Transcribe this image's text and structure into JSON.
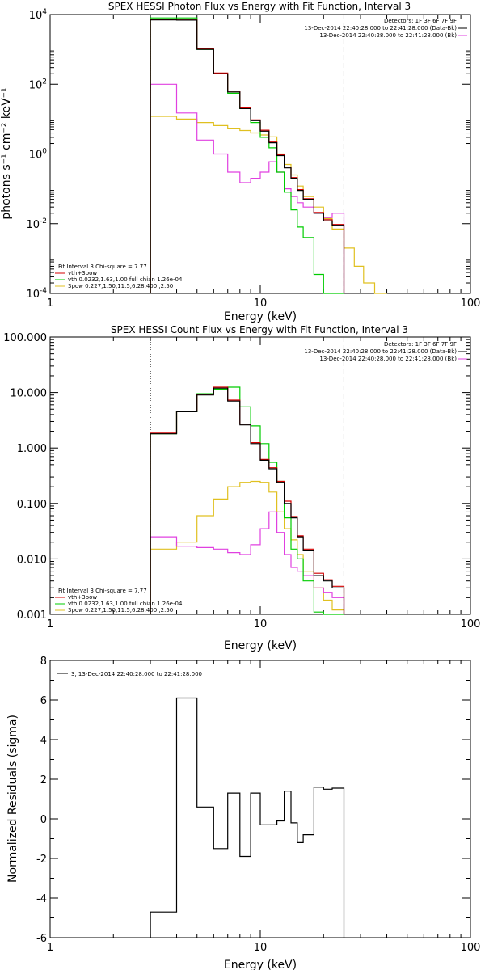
{
  "chart_data": [
    {
      "type": "line",
      "step": true,
      "title": "SPEX HESSI Photon Flux vs Energy with Fit Function, Interval 3",
      "xlabel": "Energy (keV)",
      "ylabel": "photons s⁻¹ cm⁻² keV⁻¹",
      "xscale": "log",
      "yscale": "log",
      "xlim": [
        1,
        100
      ],
      "ylim": [
        0.0001,
        10000
      ],
      "xticks": [
        "1",
        "10",
        "100"
      ],
      "yticks": [
        {
          "base": "10",
          "exp": "-4"
        },
        {
          "base": "10",
          "exp": "-2"
        },
        {
          "base": "10",
          "exp": "0"
        },
        {
          "base": "10",
          "exp": "2"
        },
        {
          "base": "10",
          "exp": "4"
        }
      ],
      "legend_top": [
        "Detectors: 1F 3F 6F 7F 9F",
        "13-Dec-2014 22:40:28.000 to 22:41:28.000 (Data-Bk)",
        "13-Dec-2014 22:40:28.000 to 22:41:28.000 (Bk)"
      ],
      "legend_bottom": [
        "Fit Interval 3   Chi-square = 7.77",
        "vth+3pow",
        "vth 0.0232,1.63,1.00  full chian 1.26e-04",
        "3pow 0.227,1.50,11.5,6.28,400.,2.50"
      ],
      "x_dashed_line": 25,
      "x_dotted_line": 3,
      "edges": [
        3,
        4,
        5,
        6,
        7,
        8,
        9,
        10,
        11,
        12,
        13,
        14,
        15,
        16,
        18,
        20,
        22,
        25,
        28,
        31,
        35,
        40
      ],
      "series": [
        {
          "color": "#000000",
          "values": [
            7000,
            6900,
            1000,
            200,
            60,
            20,
            9,
            4.5,
            2.1,
            0.9,
            0.4,
            0.2,
            0.09,
            0.05,
            0.02,
            0.012,
            0.009
          ]
        },
        {
          "color": "#d40000",
          "values": [
            7100,
            7000,
            1050,
            210,
            64,
            22,
            9.5,
            4.8,
            2.2,
            0.95,
            0.42,
            0.21,
            0.095,
            0.052,
            0.021,
            0.013,
            0.0095
          ]
        },
        {
          "color": "#00cc00",
          "values": [
            8000,
            8000,
            1000,
            200,
            55,
            20,
            8,
            3,
            1.5,
            0.3,
            0.08,
            0.025,
            0.008,
            0.004,
            0.00035,
            0.0001,
            5e-05
          ]
        },
        {
          "color": "#e040e0",
          "values": [
            100,
            15,
            2.5,
            1.0,
            0.3,
            0.15,
            0.2,
            0.3,
            0.6,
            0.3,
            0.1,
            0.06,
            0.04,
            0.03,
            0.02,
            0.015,
            0.02
          ]
        },
        {
          "color": "#e0c020",
          "values": [
            12,
            10,
            8,
            6.5,
            5.5,
            4.7,
            4,
            3.5,
            3.1,
            1.0,
            0.5,
            0.25,
            0.12,
            0.06,
            0.03,
            0.014,
            0.007,
            0.002,
            0.0006,
            0.0002,
            6e-05
          ]
        }
      ]
    },
    {
      "type": "line",
      "step": true,
      "title": "SPEX HESSI Count Flux vs Energy with Fit Function, Interval 3",
      "xlabel": "Energy (keV)",
      "xscale": "log",
      "yscale": "log",
      "xlim": [
        1,
        100
      ],
      "ylim": [
        0.001,
        100
      ],
      "xticks": [
        "1",
        "10",
        "100"
      ],
      "yticks": [
        "0.001",
        "0.010",
        "0.100",
        "1.000",
        "10.000",
        "100.000"
      ],
      "legend_top": [
        "Detectors: 1F 3F 6F 7F 9F",
        "13-Dec-2014 22:40:28.000 to 22:41:28.000 (Data-Bk)",
        "13-Dec-2014 22:40:28.000 to 22:41:28.000 (Bk)"
      ],
      "legend_bottom": [
        "Fit Interval 3   Chi-square = 7.77",
        "vth+3pow",
        "vth 0.0232,1.63,1.00  full chian 1.26e-04",
        "3pow 0.227,1.50,11.5,6.28,400.,2.50"
      ],
      "x_dashed_line": 25,
      "x_dotted_line": 3,
      "edges": [
        3,
        4,
        5,
        6,
        7,
        8,
        9,
        10,
        11,
        12,
        13,
        14,
        15,
        16,
        18,
        20,
        22,
        25
      ],
      "series": [
        {
          "color": "#000000",
          "values": [
            1.8,
            4.5,
            9,
            12,
            7,
            2.6,
            1.2,
            0.6,
            0.42,
            0.24,
            0.1,
            0.055,
            0.025,
            0.014,
            0.005,
            0.004,
            0.003
          ]
        },
        {
          "color": "#d40000",
          "values": [
            1.85,
            4.6,
            9.3,
            12.5,
            7.3,
            2.7,
            1.25,
            0.62,
            0.44,
            0.25,
            0.11,
            0.058,
            0.026,
            0.015,
            0.0055,
            0.0042,
            0.0032
          ]
        },
        {
          "color": "#00cc00",
          "values": [
            1.8,
            4.5,
            9.5,
            11.5,
            12.5,
            5.5,
            2.5,
            1.2,
            0.55,
            0.25,
            0.055,
            0.015,
            0.01,
            0.004,
            0.0011,
            0.0009,
            0.0007
          ]
        },
        {
          "color": "#e040e0",
          "values": [
            0.025,
            0.017,
            0.016,
            0.015,
            0.013,
            0.012,
            0.018,
            0.035,
            0.07,
            0.03,
            0.012,
            0.007,
            0.006,
            0.005,
            0.003,
            0.0025,
            0.002
          ]
        },
        {
          "color": "#e0c020",
          "values": [
            0.015,
            0.02,
            0.06,
            0.12,
            0.2,
            0.24,
            0.25,
            0.24,
            0.16,
            0.07,
            0.035,
            0.022,
            0.012,
            0.006,
            0.003,
            0.0018,
            0.0012
          ]
        }
      ]
    },
    {
      "type": "line",
      "step": true,
      "title": "",
      "xlabel": "Energy (keV)",
      "ylabel": "Normalized Residuals (sigma)",
      "xscale": "log",
      "yscale": "linear",
      "xlim": [
        1,
        100
      ],
      "ylim": [
        -6,
        8
      ],
      "xticks": [
        "1",
        "10",
        "100"
      ],
      "yticks": [
        "-6",
        "-4",
        "-2",
        "0",
        "2",
        "4",
        "6",
        "8"
      ],
      "legend": "3, 13-Dec-2014 22:40:28.000 to 22:41:28.000",
      "edges": [
        3,
        4,
        5,
        6,
        7,
        8,
        9,
        10,
        11,
        12,
        13,
        14,
        15,
        16,
        18,
        20,
        22,
        25
      ],
      "series": [
        {
          "color": "#000000",
          "values": [
            -4.7,
            6.1,
            0.6,
            -1.5,
            1.3,
            -1.9,
            1.3,
            -0.3,
            -0.3,
            -0.1,
            1.4,
            -0.2,
            -1.2,
            -0.8,
            1.6,
            1.5,
            1.55
          ]
        }
      ]
    }
  ]
}
